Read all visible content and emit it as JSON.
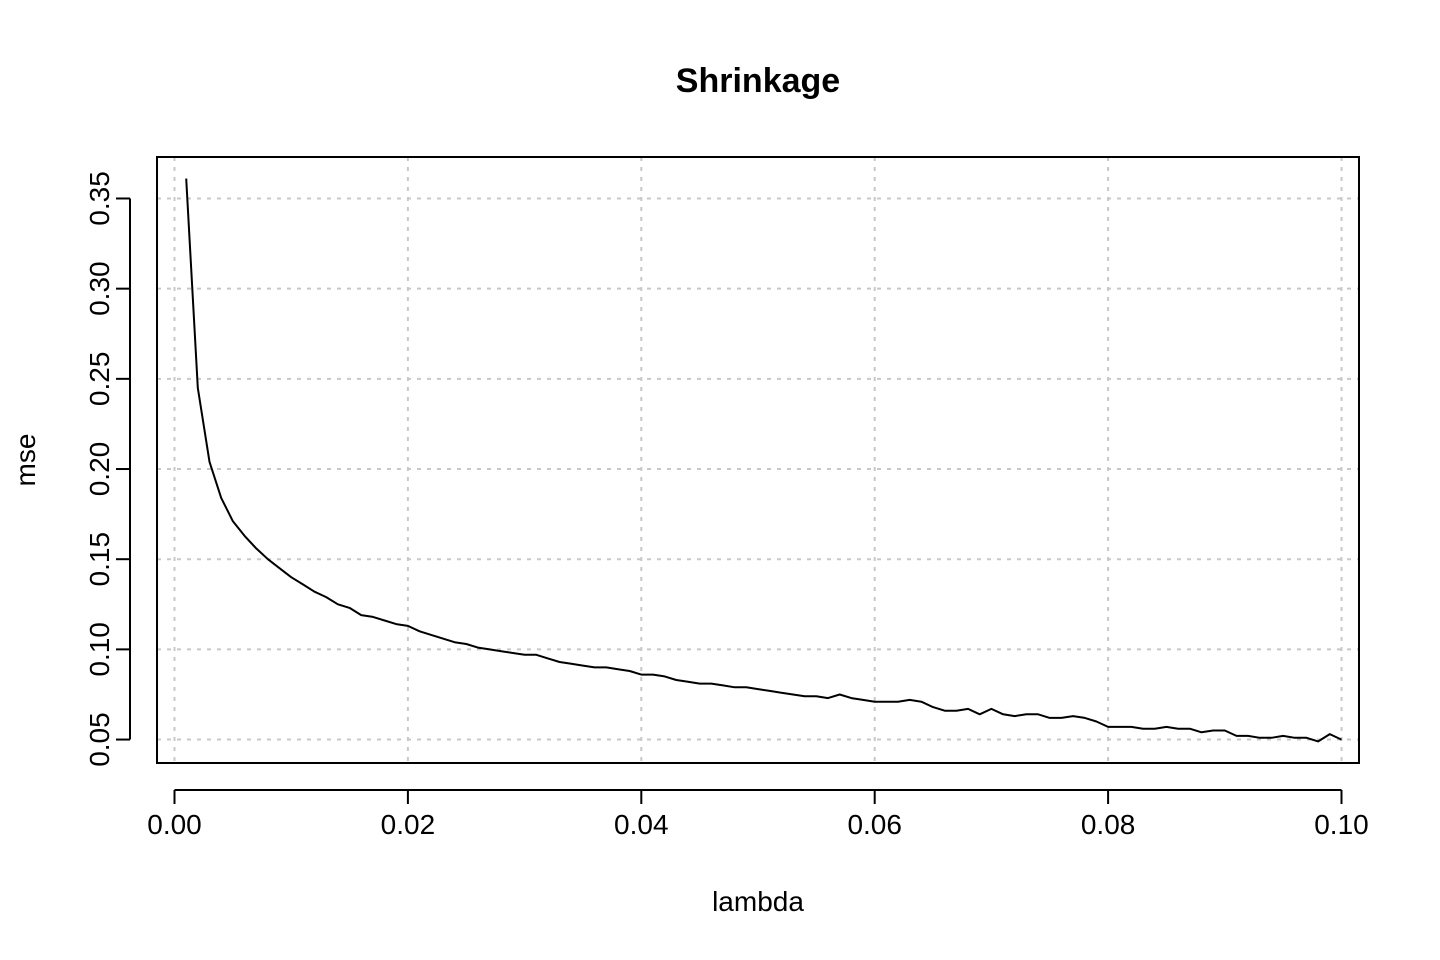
{
  "chart_data": {
    "type": "line",
    "title": "Shrinkage",
    "xlabel": "lambda",
    "ylabel": "mse",
    "xlim": [
      -0.0015,
      0.1015
    ],
    "ylim": [
      0.037,
      0.373
    ],
    "x_ticks": [
      "0.00",
      "0.02",
      "0.04",
      "0.06",
      "0.08",
      "0.10"
    ],
    "y_ticks": [
      "0.05",
      "0.10",
      "0.15",
      "0.20",
      "0.25",
      "0.30",
      "0.35"
    ],
    "grid": true,
    "grid_style": "dotted",
    "line_color": "#000000",
    "grid_color": "#c8c8c8",
    "series": [
      {
        "x": [
          0.001,
          0.002,
          0.003,
          0.004,
          0.005,
          0.006,
          0.007,
          0.008,
          0.009,
          0.01,
          0.011,
          0.012,
          0.013,
          0.014,
          0.015,
          0.016,
          0.017,
          0.018,
          0.019,
          0.02,
          0.021,
          0.022,
          0.023,
          0.024,
          0.025,
          0.026,
          0.027,
          0.028,
          0.029,
          0.03,
          0.031,
          0.032,
          0.033,
          0.034,
          0.035,
          0.036,
          0.037,
          0.038,
          0.039,
          0.04,
          0.041,
          0.042,
          0.043,
          0.044,
          0.045,
          0.046,
          0.047,
          0.048,
          0.049,
          0.05,
          0.051,
          0.052,
          0.053,
          0.054,
          0.055,
          0.056,
          0.057,
          0.058,
          0.059,
          0.06,
          0.061,
          0.062,
          0.063,
          0.064,
          0.065,
          0.066,
          0.067,
          0.068,
          0.069,
          0.07,
          0.071,
          0.072,
          0.073,
          0.074,
          0.075,
          0.076,
          0.077,
          0.078,
          0.079,
          0.08,
          0.081,
          0.082,
          0.083,
          0.084,
          0.085,
          0.086,
          0.087,
          0.088,
          0.089,
          0.09,
          0.091,
          0.092,
          0.093,
          0.094,
          0.095,
          0.096,
          0.097,
          0.098,
          0.099,
          0.1
        ],
        "values": [
          0.361,
          0.245,
          0.204,
          0.184,
          0.171,
          0.163,
          0.156,
          0.15,
          0.145,
          0.14,
          0.136,
          0.132,
          0.129,
          0.125,
          0.123,
          0.119,
          0.118,
          0.116,
          0.114,
          0.113,
          0.11,
          0.108,
          0.106,
          0.104,
          0.103,
          0.101,
          0.1,
          0.099,
          0.098,
          0.097,
          0.097,
          0.095,
          0.093,
          0.092,
          0.091,
          0.09,
          0.09,
          0.089,
          0.088,
          0.086,
          0.086,
          0.085,
          0.083,
          0.082,
          0.081,
          0.081,
          0.08,
          0.079,
          0.079,
          0.078,
          0.077,
          0.076,
          0.075,
          0.074,
          0.074,
          0.073,
          0.075,
          0.073,
          0.072,
          0.071,
          0.071,
          0.071,
          0.072,
          0.071,
          0.068,
          0.066,
          0.066,
          0.067,
          0.064,
          0.067,
          0.064,
          0.063,
          0.064,
          0.064,
          0.062,
          0.062,
          0.063,
          0.062,
          0.06,
          0.057,
          0.057,
          0.057,
          0.056,
          0.056,
          0.057,
          0.056,
          0.056,
          0.054,
          0.055,
          0.055,
          0.052,
          0.052,
          0.051,
          0.051,
          0.052,
          0.051,
          0.051,
          0.049,
          0.053,
          0.05
        ]
      }
    ]
  }
}
